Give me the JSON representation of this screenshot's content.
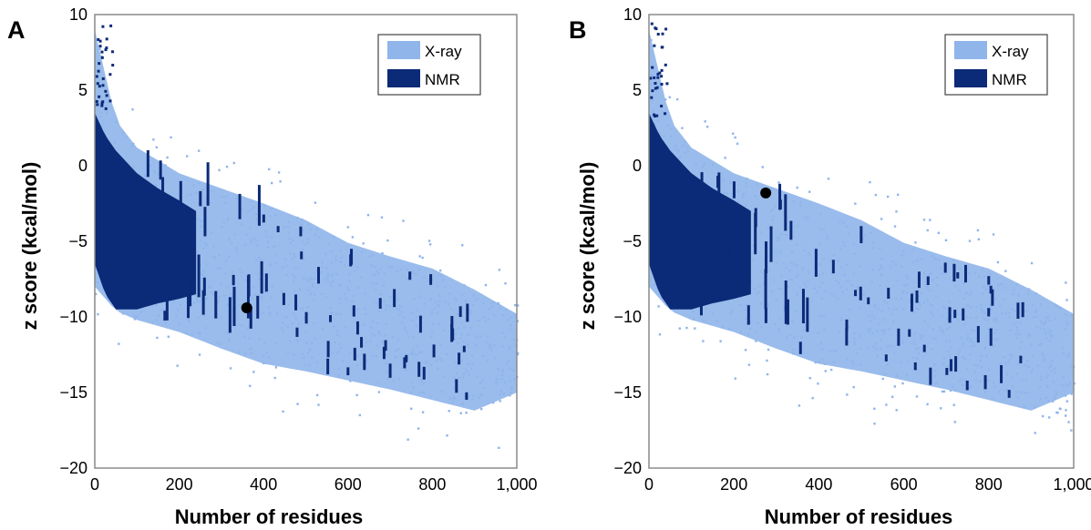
{
  "panels": [
    {
      "label": "A",
      "legend": {
        "placement": "top-right",
        "entries": [
          "X-ray",
          "NMR"
        ]
      },
      "highlight_point": {
        "x": 360,
        "y": -9.4
      }
    },
    {
      "label": "B",
      "legend": {
        "placement": "top-right",
        "entries": [
          "X-ray",
          "NMR"
        ]
      },
      "highlight_point": {
        "x": 275,
        "y": -1.8
      }
    }
  ],
  "colors": {
    "xray": "#8fb5ea",
    "nmr": "#0b2a78",
    "highlight": "#000000",
    "axis": "#8a8a8a"
  },
  "chart_data": [
    {
      "type": "scatter",
      "panel": "A",
      "xlabel": "Number of residues",
      "ylabel": "z score (kcal/mol)",
      "xlim": [
        0,
        1000
      ],
      "ylim": [
        -20,
        10
      ],
      "xticks": [
        0,
        200,
        400,
        600,
        800,
        1000
      ],
      "xtick_labels": [
        "0",
        "200",
        "400",
        "600",
        "800",
        "1,000"
      ],
      "yticks": [
        10,
        5,
        0,
        -5,
        -10,
        -15,
        -20
      ],
      "ytick_labels": [
        "10",
        "5",
        "0",
        "−5",
        "−10",
        "−15",
        "−20"
      ],
      "grid": false,
      "legend": "top-right",
      "series": [
        {
          "name": "X-ray",
          "envelope_x": [
            0,
            50,
            100,
            200,
            300,
            400,
            500,
            600,
            700,
            800,
            900,
            1000
          ],
          "upper_y": [
            9,
            3,
            1.2,
            -0.5,
            -1.5,
            -2.5,
            -3.6,
            -5.1,
            -6,
            -6.8,
            -8.2,
            -9.8
          ],
          "lower_y": [
            -8,
            -9.6,
            -10.2,
            -11,
            -12.1,
            -13.1,
            -13.6,
            -14.2,
            -14.8,
            -15.5,
            -16.2,
            -15
          ]
        },
        {
          "name": "NMR",
          "envelope_x": [
            0,
            25,
            50,
            100,
            150,
            200,
            240
          ],
          "upper_y": [
            3.5,
            2,
            1,
            -0.5,
            -1.5,
            -2.3,
            -3
          ],
          "lower_y": [
            -6.5,
            -8.5,
            -9.5,
            -9.5,
            -9.1,
            -8.8,
            -8.5
          ]
        }
      ],
      "highlight": {
        "x": 360,
        "y": -9.4
      }
    },
    {
      "type": "scatter",
      "panel": "B",
      "xlabel": "Number of residues",
      "ylabel": "z score (kcal/mol)",
      "xlim": [
        0,
        1000
      ],
      "ylim": [
        -20,
        10
      ],
      "xticks": [
        0,
        200,
        400,
        600,
        800,
        1000
      ],
      "xtick_labels": [
        "0",
        "200",
        "400",
        "600",
        "800",
        "1,000"
      ],
      "yticks": [
        10,
        5,
        0,
        -5,
        -10,
        -15,
        -20
      ],
      "ytick_labels": [
        "10",
        "5",
        "0",
        "−5",
        "−10",
        "−15",
        "−20"
      ],
      "grid": false,
      "legend": "top-right",
      "series": [
        {
          "name": "X-ray",
          "envelope_x": [
            0,
            50,
            100,
            200,
            300,
            400,
            500,
            600,
            700,
            800,
            900,
            1000
          ],
          "upper_y": [
            9,
            3,
            1.2,
            -0.5,
            -1.5,
            -2.5,
            -3.6,
            -5.1,
            -6,
            -6.8,
            -8.2,
            -9.8
          ],
          "lower_y": [
            -8,
            -9.6,
            -10.2,
            -11,
            -12.1,
            -13.1,
            -13.6,
            -14.2,
            -14.8,
            -15.5,
            -16.2,
            -15
          ]
        },
        {
          "name": "NMR",
          "envelope_x": [
            0,
            25,
            50,
            100,
            150,
            200,
            240
          ],
          "upper_y": [
            3.5,
            2,
            1,
            -0.5,
            -1.5,
            -2.3,
            -3
          ],
          "lower_y": [
            -6.5,
            -8.5,
            -9.5,
            -9.5,
            -9.1,
            -8.8,
            -8.5
          ]
        }
      ],
      "highlight": {
        "x": 275,
        "y": -1.8
      }
    }
  ]
}
